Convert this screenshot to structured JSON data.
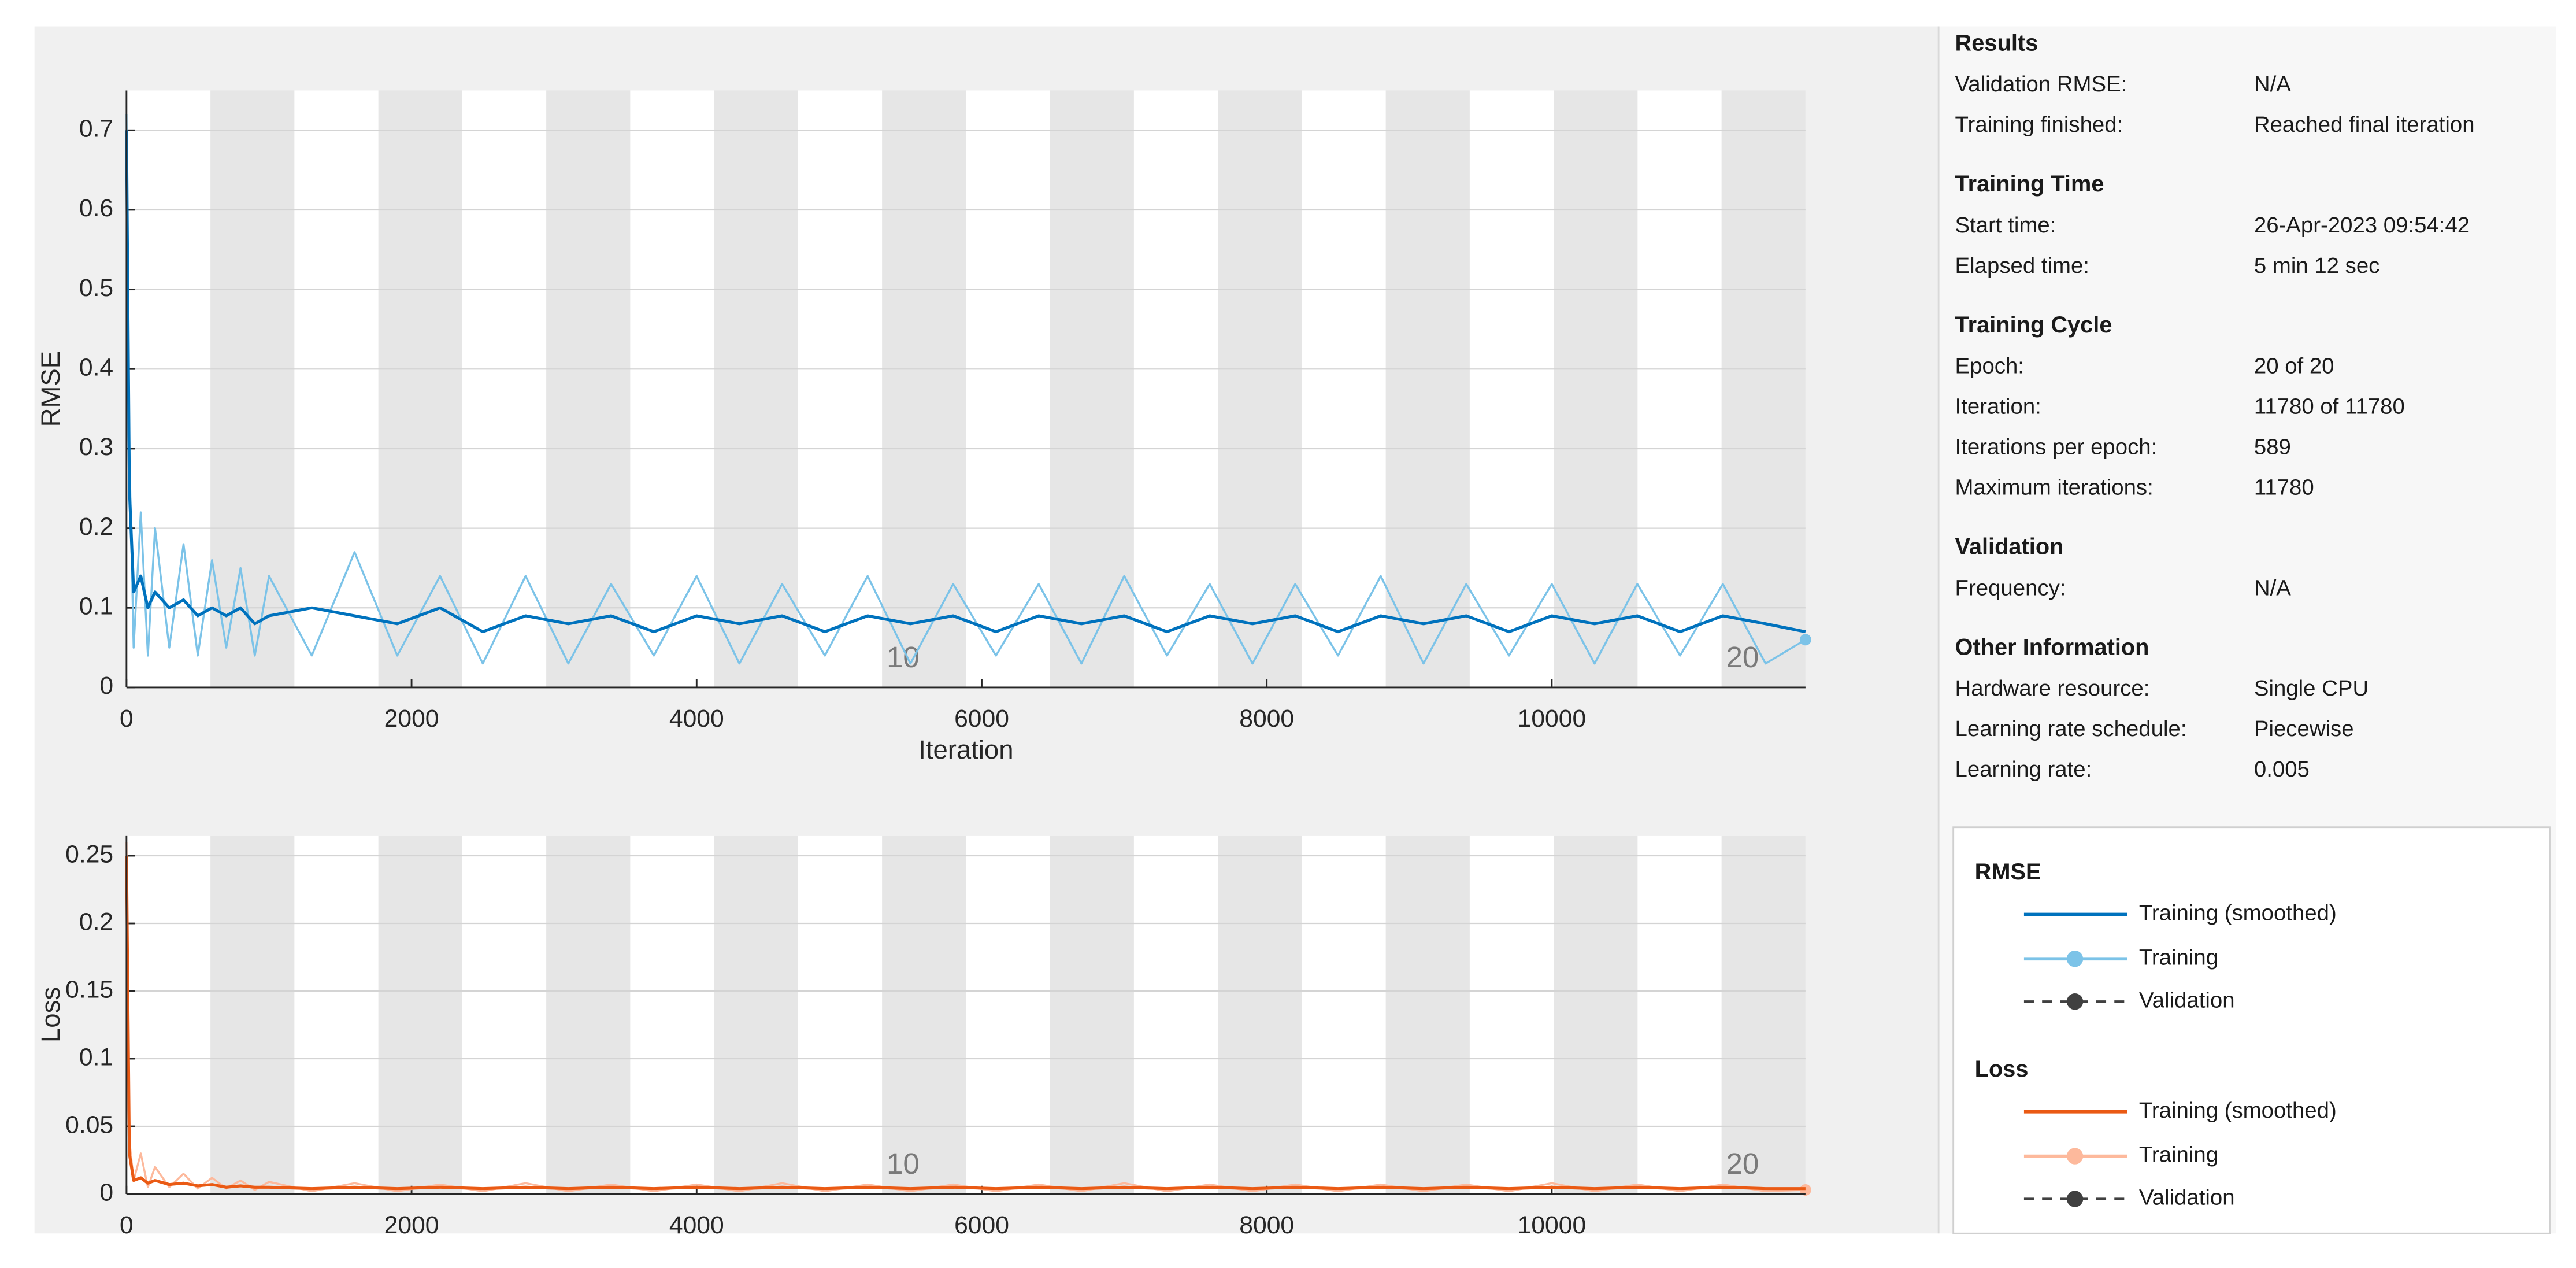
{
  "chart_data": [
    {
      "type": "line",
      "xlabel": "Iteration",
      "ylabel": "RMSE",
      "validation_label": "Validation",
      "xlim": [
        0,
        11780
      ],
      "ylim": [
        0,
        0.75
      ],
      "xticks": [
        0,
        2000,
        4000,
        6000,
        8000,
        10000
      ],
      "yticks": [
        0,
        0.1,
        0.2,
        0.3,
        0.4,
        0.5,
        0.6,
        0.7
      ],
      "grid": true,
      "epoch_markers": [
        10,
        20
      ],
      "x": [
        0,
        20,
        50,
        100,
        150,
        200,
        300,
        400,
        500,
        600,
        700,
        800,
        900,
        1000,
        1300,
        1600,
        1900,
        2200,
        2500,
        2800,
        3100,
        3400,
        3700,
        4000,
        4300,
        4600,
        4900,
        5200,
        5500,
        5800,
        6100,
        6400,
        6700,
        7000,
        7300,
        7600,
        7900,
        8200,
        8500,
        8800,
        9100,
        9400,
        9700,
        10000,
        10300,
        10600,
        10900,
        11200,
        11500,
        11780
      ],
      "series": [
        {
          "name": "Training",
          "color": "#7cc3e8",
          "values": [
            0.72,
            0.3,
            0.05,
            0.22,
            0.04,
            0.2,
            0.05,
            0.18,
            0.04,
            0.16,
            0.05,
            0.15,
            0.04,
            0.14,
            0.04,
            0.17,
            0.04,
            0.14,
            0.03,
            0.14,
            0.03,
            0.13,
            0.04,
            0.14,
            0.03,
            0.13,
            0.04,
            0.14,
            0.03,
            0.13,
            0.04,
            0.13,
            0.03,
            0.14,
            0.04,
            0.13,
            0.03,
            0.13,
            0.04,
            0.14,
            0.03,
            0.13,
            0.04,
            0.13,
            0.03,
            0.13,
            0.04,
            0.13,
            0.03,
            0.06
          ]
        },
        {
          "name": "Training (smoothed)",
          "color": "#0072bd",
          "values": [
            0.7,
            0.25,
            0.12,
            0.14,
            0.1,
            0.12,
            0.1,
            0.11,
            0.09,
            0.1,
            0.09,
            0.1,
            0.08,
            0.09,
            0.1,
            0.09,
            0.08,
            0.1,
            0.07,
            0.09,
            0.08,
            0.09,
            0.07,
            0.09,
            0.08,
            0.09,
            0.07,
            0.09,
            0.08,
            0.09,
            0.07,
            0.09,
            0.08,
            0.09,
            0.07,
            0.09,
            0.08,
            0.09,
            0.07,
            0.09,
            0.08,
            0.09,
            0.07,
            0.09,
            0.08,
            0.09,
            0.07,
            0.09,
            0.08,
            0.07
          ]
        }
      ]
    },
    {
      "type": "line",
      "ylabel": "Loss",
      "validation_label": "Validation",
      "xlim": [
        0,
        11780
      ],
      "ylim": [
        0,
        0.265
      ],
      "xticks": [
        0,
        2000,
        4000,
        6000,
        8000,
        10000
      ],
      "yticks": [
        0,
        0.05,
        0.1,
        0.15,
        0.2,
        0.25
      ],
      "grid": true,
      "epoch_markers": [
        10,
        20
      ],
      "x": [
        0,
        20,
        50,
        100,
        150,
        200,
        300,
        400,
        500,
        600,
        700,
        800,
        900,
        1000,
        1300,
        1600,
        1900,
        2200,
        2500,
        2800,
        3100,
        3400,
        3700,
        4000,
        4300,
        4600,
        4900,
        5200,
        5500,
        5800,
        6100,
        6400,
        6700,
        7000,
        7300,
        7600,
        7900,
        8200,
        8500,
        8800,
        9100,
        9400,
        9700,
        10000,
        10300,
        10600,
        10900,
        11200,
        11500,
        11780
      ],
      "series": [
        {
          "name": "Training",
          "color": "#fdb99c",
          "values": [
            0.26,
            0.04,
            0.01,
            0.03,
            0.005,
            0.02,
            0.005,
            0.015,
            0.004,
            0.012,
            0.004,
            0.01,
            0.003,
            0.009,
            0.002,
            0.008,
            0.002,
            0.007,
            0.002,
            0.008,
            0.002,
            0.007,
            0.002,
            0.007,
            0.002,
            0.008,
            0.002,
            0.007,
            0.002,
            0.007,
            0.002,
            0.007,
            0.002,
            0.008,
            0.002,
            0.007,
            0.002,
            0.007,
            0.002,
            0.007,
            0.002,
            0.007,
            0.002,
            0.008,
            0.002,
            0.007,
            0.002,
            0.007,
            0.002,
            0.003
          ]
        },
        {
          "name": "Training (smoothed)",
          "color": "#ea5a14",
          "values": [
            0.25,
            0.03,
            0.01,
            0.012,
            0.008,
            0.01,
            0.007,
            0.008,
            0.006,
            0.007,
            0.005,
            0.006,
            0.005,
            0.005,
            0.004,
            0.005,
            0.004,
            0.005,
            0.004,
            0.005,
            0.004,
            0.005,
            0.004,
            0.005,
            0.004,
            0.005,
            0.004,
            0.005,
            0.004,
            0.005,
            0.004,
            0.005,
            0.004,
            0.005,
            0.004,
            0.005,
            0.004,
            0.005,
            0.004,
            0.005,
            0.004,
            0.005,
            0.004,
            0.005,
            0.004,
            0.005,
            0.004,
            0.005,
            0.004,
            0.004
          ]
        }
      ]
    }
  ],
  "panel": {
    "iterations_per_epoch": 589,
    "sections": [
      {
        "title": "Results",
        "rows": [
          [
            "Validation RMSE:",
            "N/A"
          ],
          [
            "Training finished:",
            "Reached final iteration"
          ]
        ]
      },
      {
        "title": "Training Time",
        "rows": [
          [
            "Start time:",
            "26-Apr-2023 09:54:42"
          ],
          [
            "Elapsed time:",
            "5 min 12 sec"
          ]
        ]
      },
      {
        "title": "Training Cycle",
        "rows": [
          [
            "Epoch:",
            "20 of 20"
          ],
          [
            "Iteration:",
            "11780 of 11780"
          ],
          [
            "Iterations per epoch:",
            589
          ],
          [
            "Maximum iterations:",
            11780
          ]
        ]
      },
      {
        "title": "Validation",
        "rows": [
          [
            "Frequency:",
            "N/A"
          ]
        ]
      },
      {
        "title": "Other Information",
        "rows": [
          [
            "Hardware resource:",
            "Single CPU"
          ],
          [
            "Learning rate schedule:",
            "Piecewise"
          ],
          [
            "Learning rate:",
            0.005
          ]
        ]
      }
    ]
  }
}
